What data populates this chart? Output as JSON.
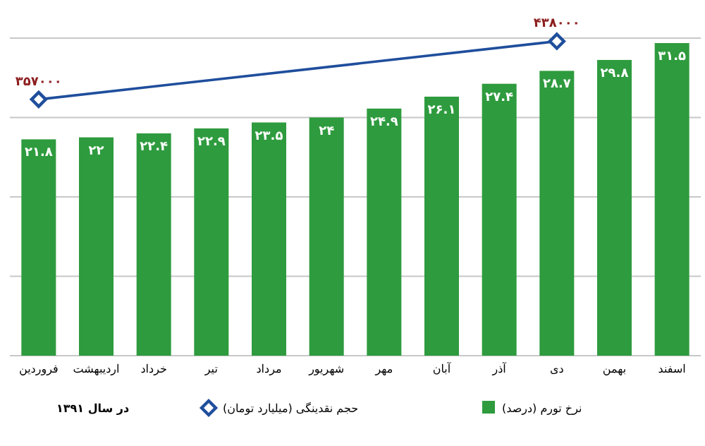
{
  "chart_data": {
    "type": "bar",
    "categories": [
      "فروردین",
      "اردیبهشت",
      "خرداد",
      "تیر",
      "مرداد",
      "شهریور",
      "مهر",
      "آبان",
      "آذر",
      "دی",
      "بهمن",
      "اسفند"
    ],
    "ylim": [
      0,
      32
    ],
    "yticks": [
      {
        "value": 0,
        "label": null
      },
      {
        "value": 8,
        "label": null
      },
      {
        "value": 16,
        "label": null
      },
      {
        "value": 24,
        "label": null
      },
      {
        "value": 32,
        "label": null
      }
    ],
    "grid": "y",
    "tick_labels": "x",
    "legend": "bottom",
    "annotations": [
      "در سال ۱۳۹۱"
    ],
    "series": [
      {
        "name": "نرخ تورم (درصد)",
        "color": "#2e9b3e",
        "values": [
          21.8,
          22,
          22.4,
          22.9,
          23.5,
          24,
          24.9,
          26.1,
          27.4,
          28.7,
          29.8,
          31.5
        ],
        "value_labels": [
          "۲۱.۸",
          "۲۲",
          "۲۲.۴",
          "۲۲.۹",
          "۲۳.۵",
          "۲۴",
          "۲۴.۹",
          "۲۶.۱",
          "۲۷.۴",
          "۲۸.۷",
          "۲۹.۸",
          "۳۱.۵"
        ]
      },
      {
        "type": "line",
        "name": "حجم نقدینگی (میلیارد تومان)",
        "color": "#1f4e9c",
        "axis": "y2",
        "marker": "diamond",
        "values": [
          357000,
          null,
          null,
          null,
          null,
          null,
          null,
          null,
          null,
          438000,
          null,
          null
        ],
        "value_labels": [
          "۳۵۷۰۰۰",
          null,
          null,
          null,
          null,
          null,
          null,
          null,
          null,
          "۴۳۸۰۰۰",
          null,
          null
        ]
      }
    ]
  }
}
